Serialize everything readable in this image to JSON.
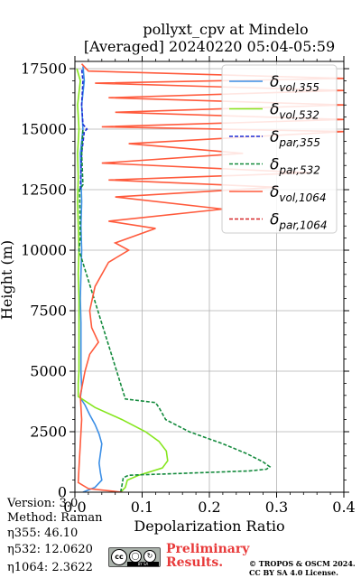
{
  "chart_data": {
    "type": "line",
    "title": "pollyxt_cpv at Mindelo",
    "subtitle": "[Averaged] 20240220 05:04-05:59",
    "xlabel": "Depolarization Ratio",
    "ylabel": "Height (m)",
    "xlim": [
      0,
      0.4
    ],
    "ylim": [
      0,
      17800
    ],
    "xticks": [
      "0.0",
      "0.1",
      "0.2",
      "0.3",
      "0.4"
    ],
    "yticks": [
      "0",
      "2500",
      "5000",
      "7500",
      "10000",
      "12500",
      "15000",
      "17500"
    ],
    "xtick_values": [
      0,
      0.1,
      0.2,
      0.3,
      0.4
    ],
    "ytick_values": [
      0,
      2500,
      5000,
      7500,
      10000,
      12500,
      15000,
      17500
    ],
    "grid": true,
    "legend_position": "top-right",
    "series": [
      {
        "name": "δvol,355",
        "sub": "vol,355",
        "color": "#3c8fe6",
        "dash": "solid",
        "points": [
          [
            0.012,
            0
          ],
          [
            0.03,
            200
          ],
          [
            0.04,
            500
          ],
          [
            0.038,
            800
          ],
          [
            0.036,
            1200
          ],
          [
            0.038,
            1600
          ],
          [
            0.04,
            2000
          ],
          [
            0.036,
            2400
          ],
          [
            0.03,
            2800
          ],
          [
            0.022,
            3200
          ],
          [
            0.015,
            3600
          ],
          [
            0.008,
            3900
          ],
          [
            0.01,
            4300
          ],
          [
            0.009,
            5000
          ],
          [
            0.009,
            6000
          ],
          [
            0.009,
            7000
          ],
          [
            0.008,
            8000
          ],
          [
            0.009,
            9000
          ],
          [
            0.01,
            10000
          ],
          [
            0.009,
            11000
          ],
          [
            0.01,
            12000
          ],
          [
            0.009,
            13000
          ],
          [
            0.008,
            14000
          ],
          [
            0.01,
            14500
          ],
          [
            0.012,
            15000
          ],
          [
            0.01,
            16000
          ],
          [
            0.014,
            17000
          ],
          [
            0.012,
            17600
          ]
        ]
      },
      {
        "name": "δvol,532",
        "sub": "vol,532",
        "color": "#86e61e",
        "dash": "solid",
        "points": [
          [
            0.068,
            0
          ],
          [
            0.075,
            200
          ],
          [
            0.078,
            500
          ],
          [
            0.095,
            700
          ],
          [
            0.13,
            1000
          ],
          [
            0.138,
            1300
          ],
          [
            0.136,
            1700
          ],
          [
            0.125,
            2100
          ],
          [
            0.105,
            2500
          ],
          [
            0.07,
            3000
          ],
          [
            0.03,
            3500
          ],
          [
            0.005,
            3950
          ],
          [
            0.005,
            4500
          ],
          [
            0.006,
            5000
          ],
          [
            0.006,
            6000
          ],
          [
            0.006,
            7000
          ],
          [
            0.006,
            8000
          ],
          [
            0.005,
            9000
          ],
          [
            0.006,
            10000
          ],
          [
            0.005,
            11000
          ],
          [
            0.004,
            12000
          ],
          [
            0.005,
            13000
          ],
          [
            0.004,
            14000
          ],
          [
            0.006,
            15000
          ],
          [
            0.004,
            16000
          ],
          [
            0.008,
            17000
          ],
          [
            0.003,
            17500
          ]
        ]
      },
      {
        "name": "δpar,355",
        "sub": "par,355",
        "color": "#1f2fd6",
        "dash": "dashed",
        "points": [
          [
            0.008,
            12500
          ],
          [
            0.009,
            13200
          ],
          [
            0.01,
            14000
          ],
          [
            0.014,
            14900
          ],
          [
            0.018,
            15000
          ],
          [
            0.012,
            15200
          ],
          [
            0.01,
            16000
          ],
          [
            0.012,
            17000
          ],
          [
            0.01,
            17500
          ]
        ]
      },
      {
        "name": "δpar,532",
        "sub": "par,532",
        "color": "#138a3c",
        "dash": "dashed",
        "points": [
          [
            0.068,
            0
          ],
          [
            0.07,
            300
          ],
          [
            0.072,
            600
          ],
          [
            0.08,
            700
          ],
          [
            0.18,
            800
          ],
          [
            0.26,
            880
          ],
          [
            0.285,
            950
          ],
          [
            0.29,
            1050
          ],
          [
            0.28,
            1250
          ],
          [
            0.255,
            1600
          ],
          [
            0.22,
            2000
          ],
          [
            0.17,
            2500
          ],
          [
            0.135,
            3000
          ],
          [
            0.125,
            3500
          ],
          [
            0.12,
            3700
          ],
          [
            0.075,
            3850
          ],
          [
            0.006,
            10000
          ],
          [
            0.008,
            10500
          ],
          [
            0.007,
            12500
          ],
          [
            0.012,
            12700
          ],
          [
            0.01,
            14000
          ],
          [
            0.012,
            15000
          ]
        ]
      },
      {
        "name": "δvol,1064",
        "sub": "vol,1064",
        "color": "#ff5a3c",
        "dash": "solid",
        "points": [
          [
            0.07,
            0
          ],
          [
            0.02,
            150
          ],
          [
            0.005,
            400
          ],
          [
            0.006,
            1000
          ],
          [
            0.008,
            2000
          ],
          [
            0.01,
            3000
          ],
          [
            0.008,
            4000
          ],
          [
            0.015,
            5000
          ],
          [
            0.022,
            5700
          ],
          [
            0.035,
            6200
          ],
          [
            0.025,
            6800
          ],
          [
            0.022,
            7500
          ],
          [
            0.03,
            8500
          ],
          [
            0.05,
            9500
          ],
          [
            0.08,
            10000
          ],
          [
            0.06,
            10300
          ],
          [
            0.12,
            10900
          ],
          [
            0.05,
            11200
          ],
          [
            0.22,
            11700
          ],
          [
            0.06,
            12200
          ],
          [
            0.3,
            12600
          ],
          [
            0.05,
            12900
          ],
          [
            0.35,
            13200
          ],
          [
            0.04,
            13600
          ],
          [
            0.25,
            14000
          ],
          [
            0.08,
            14400
          ],
          [
            0.4,
            14900
          ],
          [
            0.04,
            15100
          ],
          [
            0.4,
            15400
          ],
          [
            0.06,
            15700
          ],
          [
            0.4,
            16000
          ],
          [
            0.05,
            16300
          ],
          [
            0.4,
            16600
          ],
          [
            0.03,
            16900
          ],
          [
            0.4,
            17100
          ],
          [
            0.02,
            17400
          ],
          [
            0.01,
            17700
          ]
        ]
      },
      {
        "name": "δpar,1064",
        "sub": "par,1064",
        "color": "#d62728",
        "dash": "dashed",
        "points": []
      }
    ]
  },
  "meta": {
    "version": "Version: 3.0",
    "method": "Method: Raman",
    "eta355": "η355:  46.10",
    "eta532": "η532: 12.0620",
    "eta1064": "η1064: 2.3622"
  },
  "badge": {
    "cc": "cc",
    "license_text": "BY  SA"
  },
  "preliminary": {
    "line1": "Preliminary",
    "line2": "Results."
  },
  "copyright": {
    "line1": "© TROPOS & OSCM 2024.",
    "line2": "CC BY SA 4.0 License."
  }
}
